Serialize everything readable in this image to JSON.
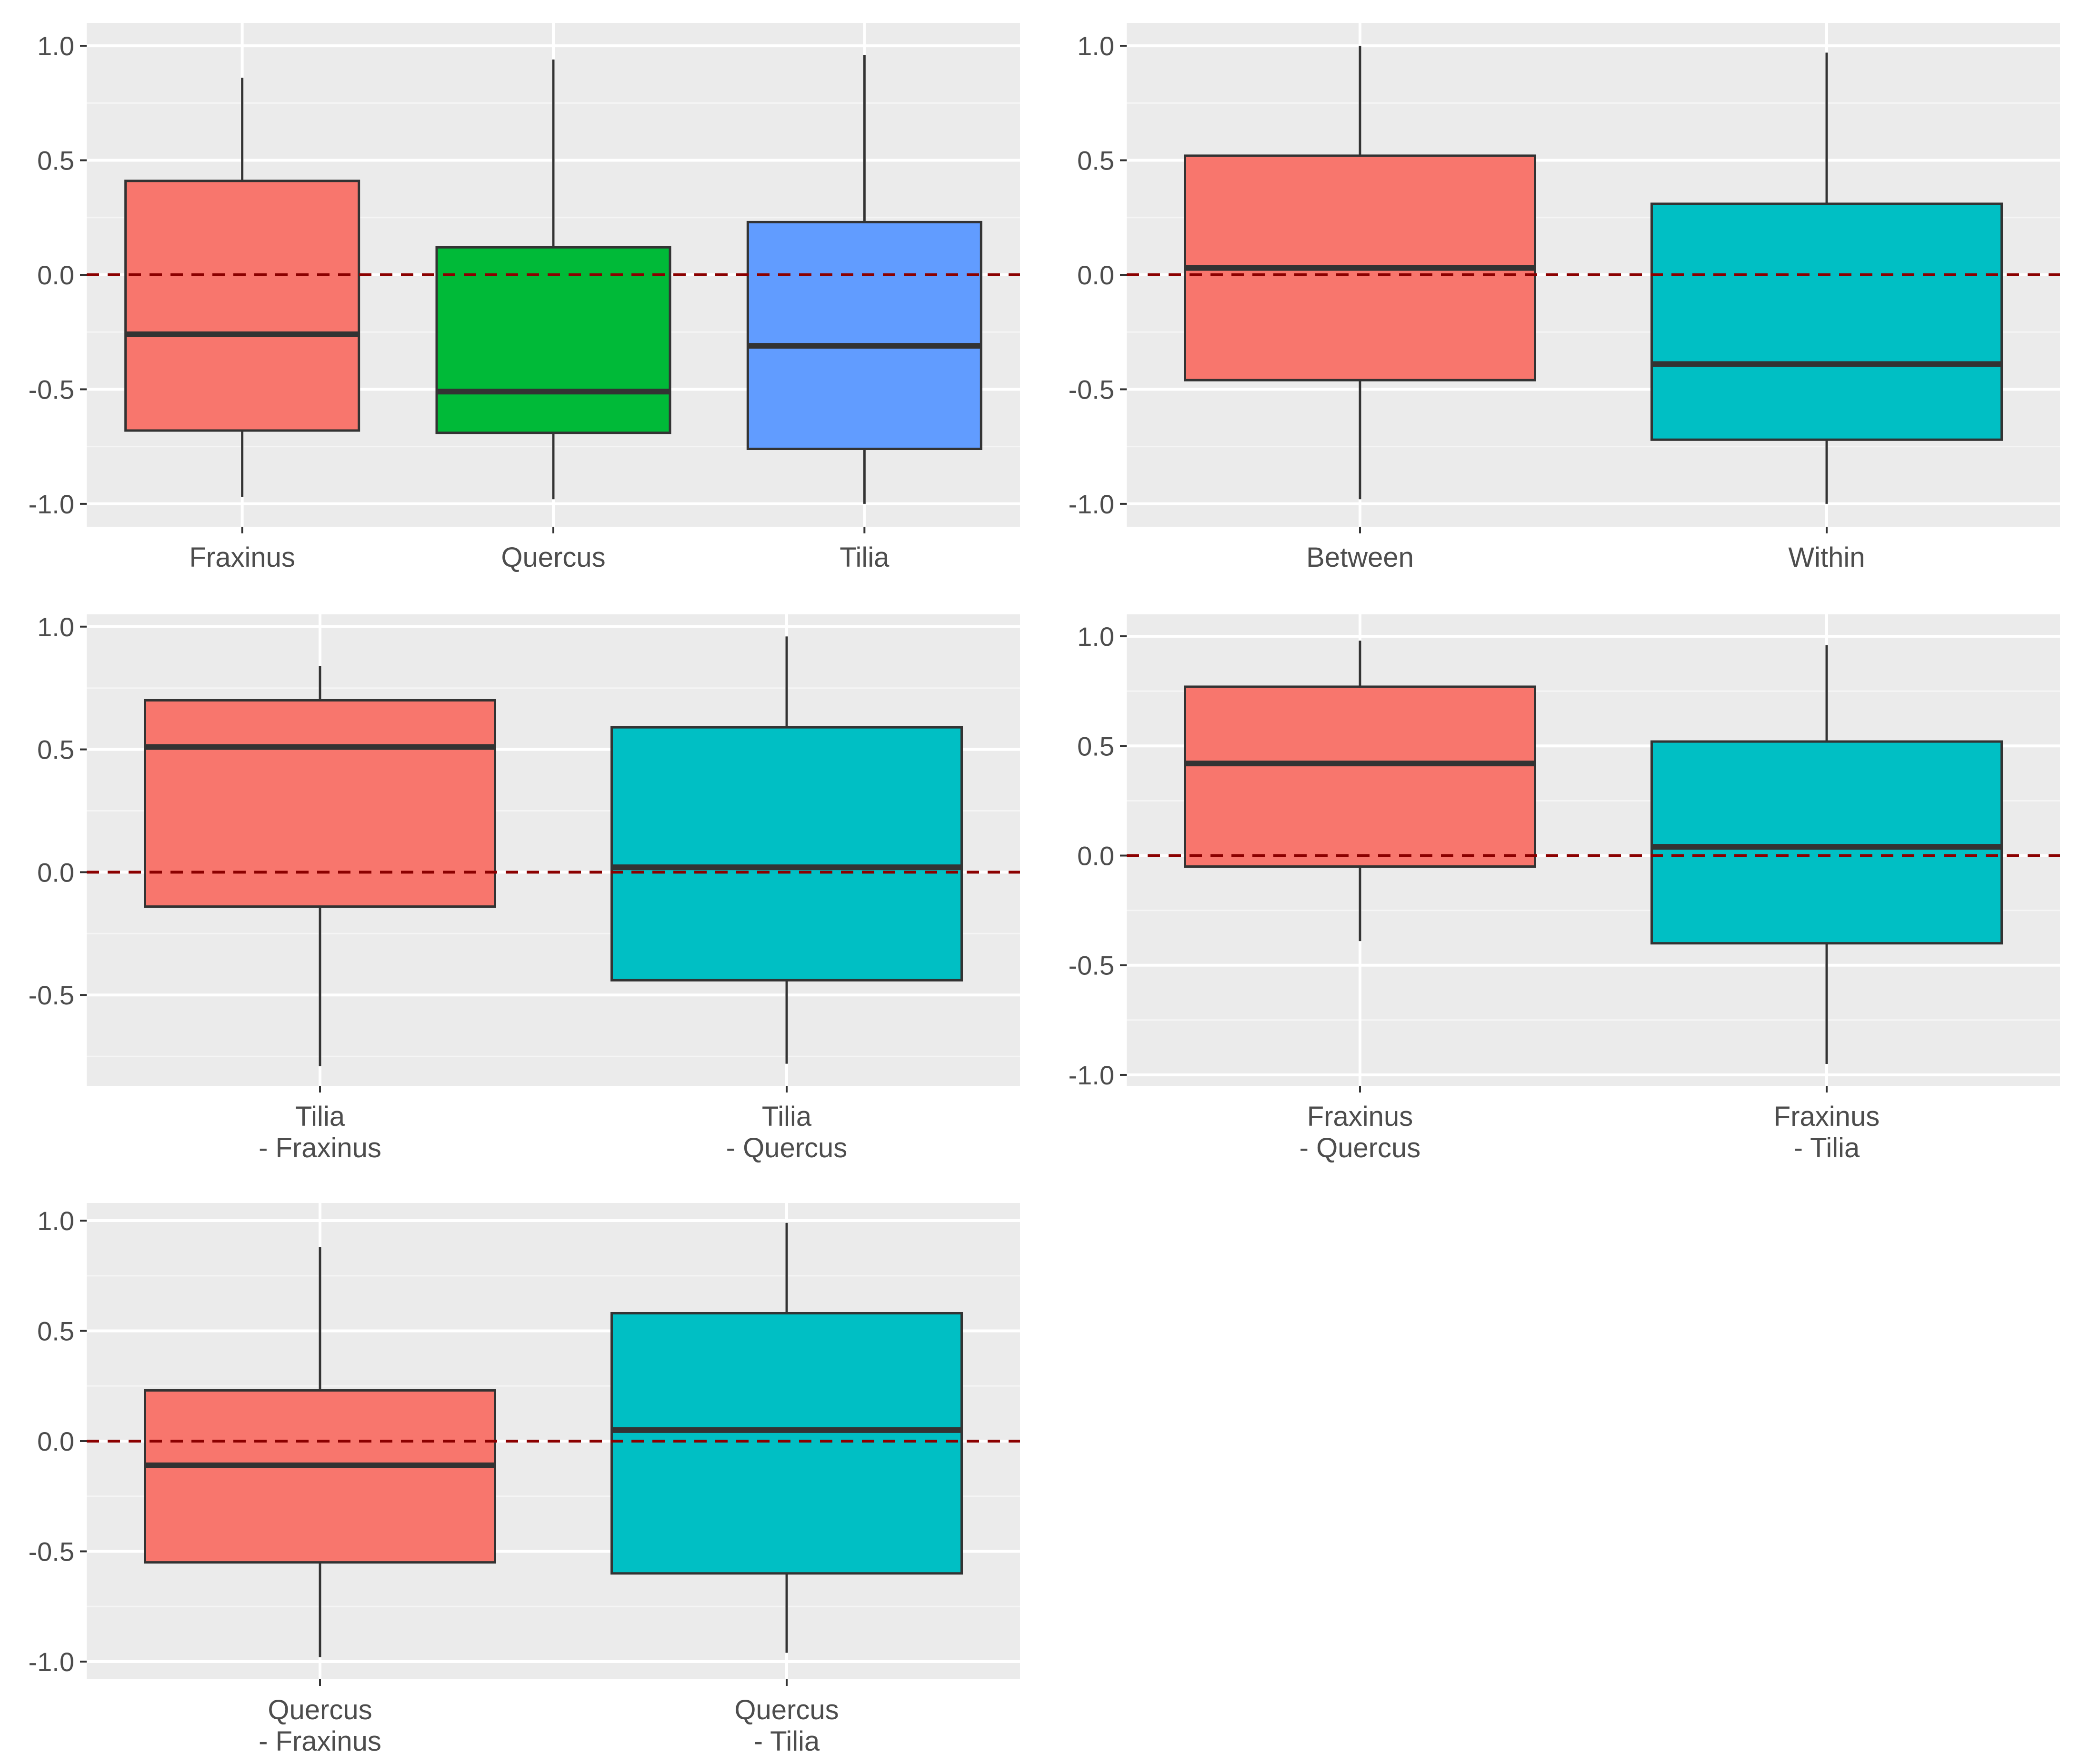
{
  "colors": {
    "panel_bg": "#EBEBEB",
    "grid_major": "#FFFFFF",
    "grid_minor": "#F5F5F5",
    "box_outline": "#333333",
    "ref_line": "#8B0000",
    "fill_red": "#F8766D",
    "fill_green": "#00BA38",
    "fill_blue": "#619CFF",
    "fill_teal": "#00BFC4",
    "tick_text": "#4D4D4D"
  },
  "chart_data": [
    {
      "type": "box",
      "reference_line": 0,
      "ylim": [
        -1.1,
        1.1
      ],
      "yticks": [
        {
          "value": -1.0,
          "label": "-1.0"
        },
        {
          "value": -0.5,
          "label": "-0.5"
        },
        {
          "value": 0.0,
          "label": "0.0"
        },
        {
          "value": 0.5,
          "label": "0.5"
        },
        {
          "value": 1.0,
          "label": "1.0"
        }
      ],
      "boxes": [
        {
          "label": [
            "Fraxinus"
          ],
          "fill": "#F8766D",
          "min": -0.97,
          "q1": -0.68,
          "median": -0.26,
          "q3": 0.41,
          "max": 0.86
        },
        {
          "label": [
            "Quercus"
          ],
          "fill": "#00BA38",
          "min": -0.98,
          "q1": -0.69,
          "median": -0.51,
          "q3": 0.12,
          "max": 0.94
        },
        {
          "label": [
            "Tilia"
          ],
          "fill": "#619CFF",
          "min": -1.0,
          "q1": -0.76,
          "median": -0.31,
          "q3": 0.23,
          "max": 0.96
        }
      ]
    },
    {
      "type": "box",
      "reference_line": 0,
      "ylim": [
        -1.1,
        1.1
      ],
      "yticks": [
        {
          "value": -1.0,
          "label": "-1.0"
        },
        {
          "value": -0.5,
          "label": "-0.5"
        },
        {
          "value": 0.0,
          "label": "0.0"
        },
        {
          "value": 0.5,
          "label": "0.5"
        },
        {
          "value": 1.0,
          "label": "1.0"
        }
      ],
      "boxes": [
        {
          "label": [
            "Between"
          ],
          "fill": "#F8766D",
          "min": -0.98,
          "q1": -0.46,
          "median": 0.03,
          "q3": 0.52,
          "max": 1.0
        },
        {
          "label": [
            "Within"
          ],
          "fill": "#00BFC4",
          "min": -1.0,
          "q1": -0.72,
          "median": -0.39,
          "q3": 0.31,
          "max": 0.97
        }
      ]
    },
    {
      "type": "box",
      "reference_line": 0,
      "ylim": [
        -0.87,
        1.05
      ],
      "yticks": [
        {
          "value": -0.5,
          "label": "-0.5"
        },
        {
          "value": 0.0,
          "label": "0.0"
        },
        {
          "value": 0.5,
          "label": "0.5"
        },
        {
          "value": 1.0,
          "label": "1.0"
        }
      ],
      "boxes": [
        {
          "label": [
            "Tilia",
            "- Fraxinus"
          ],
          "fill": "#F8766D",
          "min": -0.79,
          "q1": -0.14,
          "median": 0.51,
          "q3": 0.7,
          "max": 0.84
        },
        {
          "label": [
            "Tilia",
            "- Quercus"
          ],
          "fill": "#00BFC4",
          "min": -0.78,
          "q1": -0.44,
          "median": 0.02,
          "q3": 0.59,
          "max": 0.96
        }
      ]
    },
    {
      "type": "box",
      "reference_line": 0,
      "ylim": [
        -1.05,
        1.1
      ],
      "yticks": [
        {
          "value": -1.0,
          "label": "-1.0"
        },
        {
          "value": -0.5,
          "label": "-0.5"
        },
        {
          "value": 0.0,
          "label": "0.0"
        },
        {
          "value": 0.5,
          "label": "0.5"
        },
        {
          "value": 1.0,
          "label": "1.0"
        }
      ],
      "boxes": [
        {
          "label": [
            "Fraxinus",
            "- Quercus"
          ],
          "fill": "#F8766D",
          "min": -0.39,
          "q1": -0.05,
          "median": 0.42,
          "q3": 0.77,
          "max": 0.98
        },
        {
          "label": [
            "Fraxinus",
            "- Tilia"
          ],
          "fill": "#00BFC4",
          "min": -0.95,
          "q1": -0.4,
          "median": 0.04,
          "q3": 0.52,
          "max": 0.96
        }
      ]
    },
    {
      "type": "box",
      "reference_line": 0,
      "ylim": [
        -1.08,
        1.08
      ],
      "yticks": [
        {
          "value": -1.0,
          "label": "-1.0"
        },
        {
          "value": -0.5,
          "label": "-0.5"
        },
        {
          "value": 0.0,
          "label": "0.0"
        },
        {
          "value": 0.5,
          "label": "0.5"
        },
        {
          "value": 1.0,
          "label": "1.0"
        }
      ],
      "boxes": [
        {
          "label": [
            "Quercus",
            "- Fraxinus"
          ],
          "fill": "#F8766D",
          "min": -0.98,
          "q1": -0.55,
          "median": -0.11,
          "q3": 0.23,
          "max": 0.88
        },
        {
          "label": [
            "Quercus",
            "- Tilia"
          ],
          "fill": "#00BFC4",
          "min": -0.96,
          "q1": -0.6,
          "median": 0.05,
          "q3": 0.58,
          "max": 0.99
        }
      ]
    }
  ]
}
